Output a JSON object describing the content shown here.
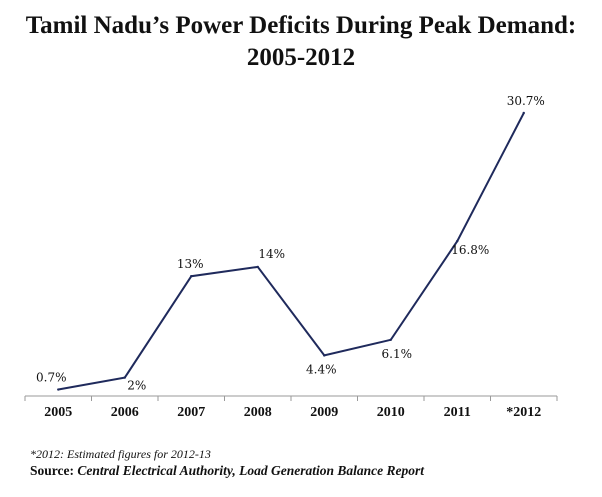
{
  "chart_data": {
    "type": "line",
    "title_line1": "Tamil Nadu’s Power Deficits During Peak Demand:",
    "title_line2": "2005-2012",
    "categories": [
      "2005",
      "2006",
      "2007",
      "2008",
      "2009",
      "2010",
      "2011",
      "*2012"
    ],
    "values": [
      0.7,
      2,
      13,
      14,
      4.4,
      6.1,
      16.8,
      30.7
    ],
    "data_labels": [
      "0.7%",
      "2%",
      "13%",
      "14%",
      "4.4%",
      "6.1%",
      "16.8%",
      "30.7%"
    ],
    "ylim": [
      0,
      32
    ],
    "grid": false,
    "legend": "none",
    "line_color": "#1f2a5c",
    "axis_color": "#9a9a9a"
  },
  "footnote": "*2012: Estimated figures for 2012-13",
  "source_label": "Source:",
  "source_text": "Central Electrical Authority, Load Generation Balance Report"
}
